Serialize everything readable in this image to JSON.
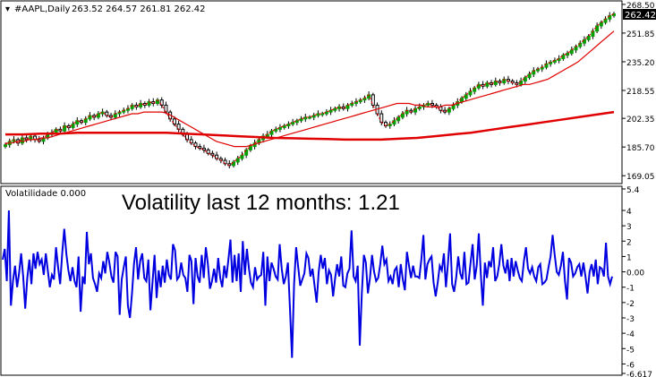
{
  "window": {
    "title": "#AAPL,Daily",
    "ohlc": "263.52 264.57 261.81 262.42",
    "current_price": "262.42"
  },
  "colors": {
    "background": "#ffffff",
    "grid": "#c0c0c0",
    "bull_candle": "#00a000",
    "bear_candle": "#000000",
    "ma_fast": "#e00000",
    "ma_slow": "#e00000",
    "volatility_line": "#0000e0",
    "price_tag_bg": "#000000",
    "price_tag_text": "#ffffff"
  },
  "price_panel": {
    "axis_labels": [
      "268.50",
      "251.85",
      "235.20",
      "218.55",
      "202.35",
      "185.70",
      "169.05"
    ],
    "axis_values": [
      268.5,
      251.85,
      235.2,
      218.55,
      202.35,
      185.7,
      169.05
    ]
  },
  "indicator_panel": {
    "label": "Volatilidade 0.000",
    "annotation": "Volatility last 12 months: 1.21",
    "axis_labels": [
      "5.4",
      "4",
      "3",
      "2",
      "1",
      "0.00",
      "-1",
      "-2",
      "-3",
      "-4",
      "-5",
      "-6",
      "-6.617"
    ],
    "axis_values": [
      5.4,
      4,
      3,
      2,
      1,
      0,
      -1,
      -2,
      -3,
      -4,
      -5,
      -6,
      -6.617
    ]
  },
  "chart_data": [
    {
      "type": "candlestick",
      "title": "#AAPL,Daily",
      "ylim": [
        165,
        270
      ],
      "ohlc": {
        "open": 263.52,
        "high": 264.57,
        "low": 261.81,
        "close": 262.42
      },
      "price_path": [
        187,
        189,
        190,
        188,
        191,
        190,
        192,
        190,
        189,
        191,
        193,
        194,
        196,
        195,
        198,
        197,
        199,
        201,
        200,
        202,
        204,
        203,
        205,
        206,
        204,
        203,
        205,
        206,
        207,
        208,
        210,
        209,
        211,
        210,
        212,
        211,
        213,
        210,
        206,
        202,
        199,
        196,
        193,
        190,
        188,
        186,
        185,
        184,
        182,
        181,
        179,
        178,
        176,
        175,
        177,
        179,
        181,
        184,
        186,
        188,
        190,
        192,
        193,
        195,
        196,
        197,
        198,
        199,
        200,
        201,
        202,
        203,
        203,
        204,
        205,
        205,
        206,
        207,
        208,
        209,
        208,
        210,
        211,
        212,
        213,
        214,
        216,
        210,
        205,
        200,
        198,
        199,
        201,
        203,
        205,
        207,
        206,
        208,
        209,
        210,
        211,
        210,
        209,
        207,
        206,
        208,
        210,
        212,
        214,
        216,
        218,
        220,
        222,
        221,
        223,
        222,
        224,
        223,
        225,
        224,
        223,
        222,
        224,
        226,
        228,
        230,
        231,
        232,
        234,
        235,
        236,
        237,
        239,
        240,
        242,
        244,
        246,
        248,
        250,
        253,
        256,
        258,
        260,
        262,
        263
      ],
      "ma_fast": [
        188,
        188,
        189,
        189,
        190,
        190,
        191,
        191,
        192,
        193,
        194,
        195,
        196,
        197,
        198,
        199,
        200,
        201,
        202,
        203,
        204,
        205,
        205,
        206,
        206,
        206,
        206,
        205,
        203,
        201,
        199,
        197,
        195,
        193,
        191,
        189,
        188,
        187,
        186,
        186,
        186,
        187,
        188,
        189,
        190,
        191,
        192,
        193,
        194,
        195,
        196,
        197,
        198,
        199,
        200,
        201,
        202,
        203,
        204,
        205,
        206,
        207,
        208,
        209,
        210,
        211,
        211,
        211,
        210,
        210,
        209,
        209,
        209,
        210,
        210,
        211,
        212,
        213,
        214,
        215,
        216,
        217,
        218,
        219,
        220,
        221,
        222,
        222,
        223,
        224,
        225,
        227,
        229,
        231,
        233,
        235,
        238,
        241,
        244,
        247,
        250,
        253
      ],
      "ma_slow": [
        193,
        193,
        193.5,
        193.5,
        194,
        194,
        194,
        194,
        194,
        194,
        193.5,
        193,
        192.5,
        192,
        191.5,
        191,
        190.8,
        190.5,
        190.3,
        190,
        190,
        190,
        190.5,
        191,
        192,
        193,
        194,
        195.5,
        197,
        198.5,
        200,
        201.5,
        203,
        204.5,
        206
      ]
    },
    {
      "type": "line",
      "title": "Volatilidade 0.000",
      "annotation": "Volatility last 12 months: 1.21",
      "ylim": [
        -6.617,
        5.4
      ],
      "values": [
        0.8,
        1.5,
        -0.6,
        4.0,
        -2.2,
        -0.6,
        0.4,
        -1.0,
        -0.1,
        1.2,
        -0.3,
        -2.4,
        -0.4,
        0.8,
        -0.8,
        1.2,
        0.2,
        1.3,
        0.5,
        0.8,
        -0.2,
        1.2,
        0.1,
        -1.0,
        -0.2,
        -0.5,
        1.6,
        0.3,
        -0.8,
        1.2,
        2.8,
        1.2,
        0.1,
        -0.6,
        0.3,
        -0.6,
        -1.0,
        1.0,
        -2.6,
        -0.3,
        -0.8,
        2.6,
        0.5,
        1.2,
        -0.4,
        -0.8,
        -1.3,
        -0.1,
        -0.4,
        0.7,
        -0.1,
        1.3,
        0.6,
        -0.3,
        -0.7,
        1.3,
        1.0,
        -2.8,
        -0.5,
        0.3,
        1.0,
        -2.2,
        -3.0,
        -1.4,
        0.5,
        1.6,
        -0.5,
        0.7,
        1.2,
        -0.4,
        -0.6,
        0.8,
        -2.5,
        -0.7,
        1.1,
        -1.7,
        0.1,
        -1.0,
        0.4,
        -0.7,
        0.8,
        -0.2,
        -0.5,
        1.8,
        1.4,
        -0.5,
        -0.3,
        0.6,
        -0.2,
        -0.4,
        -1.3,
        1.1,
        0.7,
        -2.1,
        0.9,
        -0.3,
        -0.7,
        1.1,
        -0.4,
        1.6,
        0.5,
        -1.1,
        -0.6,
        0.2,
        -0.7,
        0.9,
        -0.4,
        -1.0,
        0.4,
        -0.4,
        0.8,
        2.1,
        -0.7,
        1.1,
        -0.6,
        1.2,
        -1.3,
        2.0,
        -0.2,
        1.5,
        0.2,
        -0.7,
        -1.0,
        0.3,
        -0.5,
        -0.3,
        -0.2,
        1.3,
        -2.2,
        1.0,
        -0.6,
        0.6,
        0.2,
        -0.3,
        -0.5,
        1.8,
        0.2,
        -0.8,
        -0.3,
        0.6,
        -2.4,
        -5.6,
        -0.8,
        1.6,
        0.3,
        -0.9,
        -0.5,
        -0.1,
        1.2,
        0.9,
        -0.3,
        0.2,
        -0.9,
        -2.0,
        0.0,
        1.1,
        0.2,
        0.9,
        -0.8,
        0.1,
        -0.2,
        -1.6,
        -0.4,
        0.5,
        -0.3,
        1.0,
        -0.9,
        -1.0,
        -0.1,
        0.2,
        2.7,
        -0.3,
        -0.6,
        0.4,
        -4.8,
        -1.4,
        1.1,
        0.6,
        -1.4,
        -0.4,
        1.1,
        0.0,
        -0.6,
        -0.4,
        0.5,
        1.7,
        0.5,
        0.8,
        -0.6,
        -0.3,
        -0.8,
        0.1,
        0.3,
        -1.0,
        0.5,
        -0.5,
        -1.2,
        1.3,
        0.4,
        -0.4,
        0.4,
        -0.3,
        -0.3,
        -0.4,
        0.8,
        2.4,
        -0.5,
        0.5,
        0.8,
        1.0,
        -0.7,
        -1.6,
        -0.7,
        0.4,
        0.1,
        1.2,
        -1.0,
        0.6,
        2.5,
        -0.8,
        -1.3,
        -0.4,
        1.0,
        -0.1,
        -0.5,
        1.3,
        -0.8,
        -0.7,
        0.6,
        1.8,
        -0.5,
        0.4,
        2.5,
        -0.2,
        -2.2,
        0.6,
        -0.4,
        0.7,
        0.3,
        1.6,
        -0.6,
        -0.3,
        0.5,
        1.8,
        0.4,
        -0.1,
        0.8,
        -0.6,
        0.9,
        -0.3,
        0.7,
        0.1,
        -0.4,
        -0.6,
        0.7,
        1.6,
        0.2,
        -0.1,
        0.3,
        -0.3,
        -0.6,
        0.3,
        0.5,
        -0.8,
        -0.7,
        -0.5,
        0.3,
        1.0,
        2.4,
        1.1,
        0.0,
        -0.2,
        0.4,
        1.3,
        -0.6,
        -1.8,
        0.9,
        0.6,
        -0.3,
        -0.1,
        0.3,
        0.5,
        -0.3,
        0.6,
        -0.3,
        -1.4,
        0.0,
        0.5,
        -0.3,
        0.8,
        -0.8,
        0.3,
        0.2,
        -0.3,
        1.9,
        -0.3,
        -0.8,
        -0.3
      ]
    }
  ]
}
